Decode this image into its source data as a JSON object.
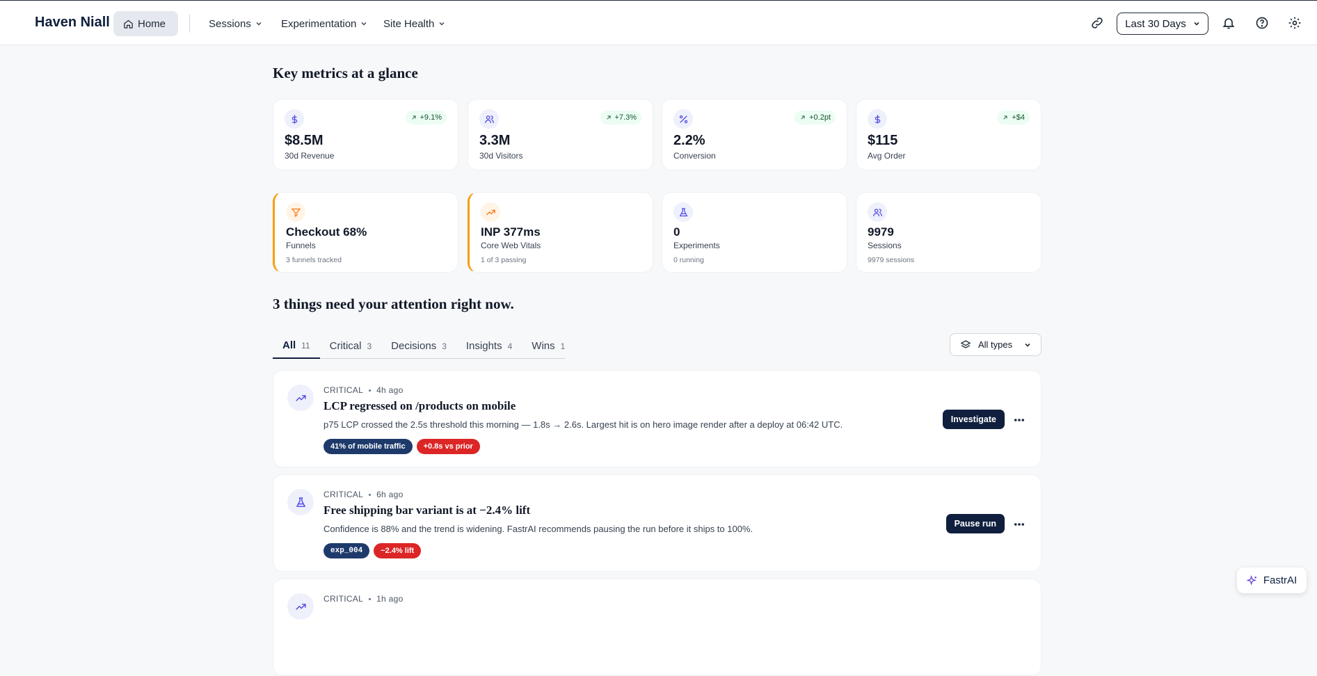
{
  "header": {
    "brand": "Haven Niall",
    "nav": [
      "Home",
      "Sessions",
      "Experimentation",
      "Site Health"
    ],
    "date_range": "Last 30 Days"
  },
  "metrics": {
    "title": "Key metrics at a glance",
    "cards": [
      {
        "value": "$8.5M",
        "label": "30d Revenue",
        "delta": "+9.1%"
      },
      {
        "value": "3.3M",
        "label": "30d Visitors",
        "delta": "+7.3%"
      },
      {
        "value": "2.2%",
        "label": "Conversion",
        "delta": "+0.2pt"
      },
      {
        "value": "$115",
        "label": "Avg Order",
        "delta": "+$4"
      }
    ]
  },
  "status": [
    {
      "value": "Checkout 68%",
      "label": "Funnels",
      "note": "3 funnels tracked",
      "flagged": true
    },
    {
      "value": "INP 377ms",
      "label": "Core Web Vitals",
      "note": "1 of 3 passing",
      "flagged": true
    },
    {
      "value": "0",
      "label": "Experiments",
      "note": "0 running",
      "flagged": false
    },
    {
      "value": "9979",
      "label": "Sessions",
      "note": "9979 sessions",
      "flagged": false
    }
  ],
  "attention": {
    "title": "3 things need your attention right now.",
    "tabs": [
      {
        "label": "All",
        "count": 11
      },
      {
        "label": "Critical",
        "count": 3
      },
      {
        "label": "Decisions",
        "count": 3
      },
      {
        "label": "Insights",
        "count": 4
      },
      {
        "label": "Wins",
        "count": 1
      }
    ],
    "filter": "All types",
    "alerts": [
      {
        "severity": "CRITICAL",
        "time": "4h ago",
        "title": "LCP regressed on /products on mobile",
        "body": "p75 LCP crossed the 2.5s threshold this morning — 1.8s → 2.6s. Largest hit is on hero image render after a deploy at 06:42 UTC.",
        "tags": [
          "41% of mobile traffic",
          "+0.8s vs prior"
        ],
        "action": "Investigate"
      },
      {
        "severity": "CRITICAL",
        "time": "6h ago",
        "title": "Free shipping bar variant is at −2.4% lift",
        "body": "Confidence is 88% and the trend is widening. FastrAI recommends pausing the run before it ships to 100%.",
        "tags": [
          "exp_004",
          "−2.4% lift"
        ],
        "action": "Pause run"
      },
      {
        "severity": "CRITICAL",
        "time": "1h ago"
      }
    ]
  },
  "assistant": "FastrAI"
}
